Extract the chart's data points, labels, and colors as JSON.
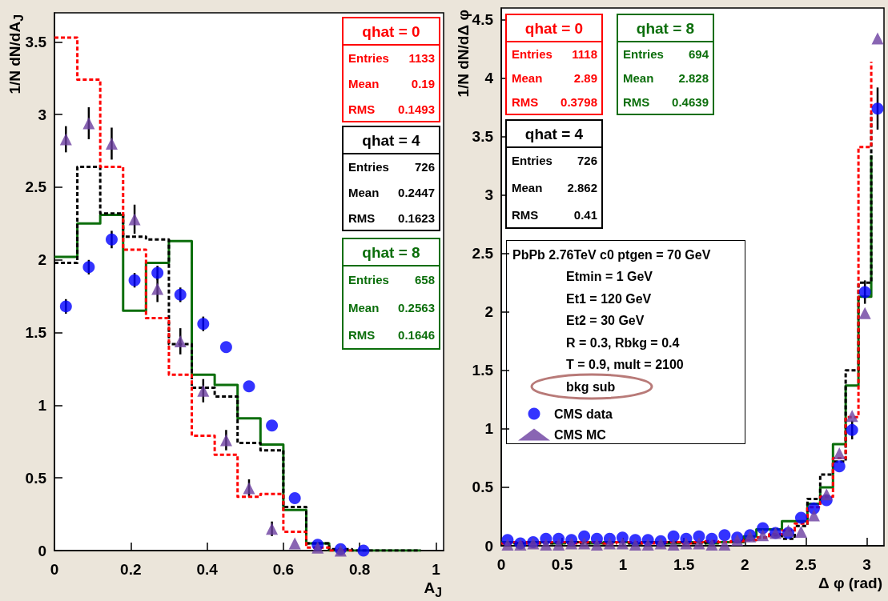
{
  "chart_data": [
    {
      "type": "step",
      "xlabel": "A$_{J}$",
      "ylabel": "1/N dN/dA$_{J}$",
      "xlim": [
        0,
        1.02
      ],
      "xticks": [
        0,
        0.2,
        0.4,
        0.6,
        0.8,
        1
      ],
      "ylim": [
        0,
        3.7
      ],
      "yticks": [
        0,
        0.5,
        1,
        1.5,
        2,
        2.5,
        3,
        3.5
      ],
      "grid": false,
      "series": [
        {
          "name": "qhat = 0",
          "color": "#ff0000",
          "line_style": "dashed",
          "x": [
            0,
            0.06,
            0.12,
            0.18,
            0.24,
            0.3,
            0.36,
            0.42,
            0.48,
            0.54,
            0.6,
            0.66,
            0.72,
            0.78
          ],
          "values": [
            3.53,
            3.24,
            2.64,
            2.07,
            1.6,
            1.21,
            0.79,
            0.66,
            0.37,
            0.39,
            0.13,
            0.02,
            0,
            0
          ]
        },
        {
          "name": "qhat = 4",
          "color": "#000000",
          "line_style": "dashed",
          "x": [
            0,
            0.06,
            0.12,
            0.18,
            0.24,
            0.3,
            0.36,
            0.42,
            0.48,
            0.54,
            0.6,
            0.66,
            0.72,
            0.78,
            0.84,
            0.9,
            0.96
          ],
          "values": [
            1.98,
            2.64,
            2.32,
            2.16,
            2.14,
            1.42,
            1.12,
            1.06,
            0.74,
            0.69,
            0.3,
            0.05,
            0.01,
            0,
            0,
            0,
            0
          ]
        },
        {
          "name": "qhat = 8",
          "color": "#0b6e0b",
          "line_style": "solid",
          "x": [
            0,
            0.06,
            0.12,
            0.18,
            0.24,
            0.3,
            0.36,
            0.42,
            0.48,
            0.54,
            0.6,
            0.66,
            0.72,
            0.78,
            0.84,
            0.9,
            0.96
          ],
          "values": [
            2.02,
            2.25,
            2.31,
            1.65,
            1.98,
            2.13,
            1.21,
            1.14,
            0.91,
            0.73,
            0.28,
            0.05,
            0,
            0,
            0,
            0,
            0
          ]
        },
        {
          "type": "scatter",
          "color": "#0000ff",
          "marker": "circle",
          "x": [
            0.03,
            0.09,
            0.15,
            0.21,
            0.27,
            0.33,
            0.39,
            0.45,
            0.51,
            0.57,
            0.63,
            0.69,
            0.75,
            0.81
          ],
          "values": [
            1.68,
            1.95,
            2.14,
            1.86,
            1.91,
            1.76,
            1.56,
            1.4,
            1.13,
            0.86,
            0.36,
            0.04,
            0.01,
            0
          ],
          "errors": [
            0.05,
            0.05,
            0.06,
            0.05,
            0.05,
            0.05,
            0.05,
            null,
            null,
            null,
            null,
            null,
            null,
            null
          ]
        },
        {
          "type": "scatter",
          "color": "#6b3fa0",
          "marker": "triangle",
          "x": [
            0.03,
            0.09,
            0.15,
            0.21,
            0.27,
            0.33,
            0.39,
            0.45,
            0.51,
            0.57,
            0.63,
            0.69,
            0.75
          ],
          "values": [
            2.83,
            2.94,
            2.8,
            2.28,
            1.8,
            1.44,
            1.1,
            0.76,
            0.43,
            0.15,
            0.05,
            0.02,
            0
          ],
          "errors": [
            0.09,
            0.11,
            0.11,
            0.1,
            0.09,
            0.09,
            0.08,
            0.07,
            0.06,
            0.05,
            null,
            null,
            null
          ]
        }
      ],
      "annotations": [
        "Entries 1133",
        "Mean 0.19",
        "RMS 0.1493",
        "Entries 726",
        "Mean 0.2447",
        "RMS 0.1623",
        "Entries 658",
        "Mean 0.2563",
        "RMS 0.1646"
      ]
    },
    {
      "type": "step",
      "xlabel": "Δ φ (rad)",
      "ylabel": "1/N dN/dΔ φ",
      "xlim": [
        0,
        3.1416
      ],
      "xticks": [
        0,
        0.5,
        1,
        1.5,
        2,
        2.5,
        3
      ],
      "ylim": [
        0,
        4.6
      ],
      "yticks": [
        0,
        0.5,
        1,
        1.5,
        2,
        2.5,
        3,
        3.5,
        4,
        4.5
      ],
      "grid": false,
      "legend": "left",
      "series": [
        {
          "name": "qhat = 0",
          "color": "#ff0000",
          "line_style": "dashed",
          "x": [
            0,
            0.105,
            0.209,
            0.314,
            0.419,
            0.524,
            0.628,
            0.733,
            0.838,
            0.942,
            1.047,
            1.152,
            1.257,
            1.361,
            1.466,
            1.571,
            1.676,
            1.78,
            1.885,
            1.99,
            2.094,
            2.199,
            2.304,
            2.409,
            2.513,
            2.618,
            2.723,
            2.827,
            2.932,
            3.037
          ],
          "values": [
            0.02,
            0.03,
            0.02,
            0.03,
            0.03,
            0.02,
            0.03,
            0.03,
            0.02,
            0.03,
            0.03,
            0.02,
            0.03,
            0.03,
            0.02,
            0.03,
            0.04,
            0.03,
            0.04,
            0.05,
            0.07,
            0.1,
            0.13,
            0.19,
            0.33,
            0.42,
            0.75,
            1.1,
            3.41,
            4.14
          ]
        },
        {
          "name": "qhat = 4",
          "color": "#000000",
          "line_style": "dashed",
          "x": [
            0,
            0.105,
            0.209,
            0.314,
            0.419,
            0.524,
            0.628,
            0.733,
            0.838,
            0.942,
            1.047,
            1.152,
            1.257,
            1.361,
            1.466,
            1.571,
            1.676,
            1.78,
            1.885,
            1.99,
            2.094,
            2.199,
            2.304,
            2.409,
            2.513,
            2.618,
            2.723,
            2.827,
            2.932,
            3.037
          ],
          "values": [
            0.02,
            0.02,
            0.03,
            0.02,
            0.03,
            0.03,
            0.02,
            0.03,
            0.02,
            0.03,
            0.02,
            0.03,
            0.02,
            0.03,
            0.03,
            0.02,
            0.03,
            0.03,
            0.04,
            0.05,
            0.07,
            0.09,
            0.06,
            0.17,
            0.4,
            0.61,
            0.72,
            1.5,
            2.25,
            3.7
          ]
        },
        {
          "name": "qhat = 8",
          "color": "#0b6e0b",
          "line_style": "solid",
          "x": [
            0,
            0.105,
            0.209,
            0.314,
            0.419,
            0.524,
            0.628,
            0.733,
            0.838,
            0.942,
            1.047,
            1.152,
            1.257,
            1.361,
            1.466,
            1.571,
            1.676,
            1.78,
            1.885,
            1.99,
            2.094,
            2.199,
            2.304,
            2.409,
            2.513,
            2.618,
            2.723,
            2.827,
            2.932,
            3.037
          ],
          "values": [
            0.03,
            0.02,
            0.03,
            0.03,
            0.02,
            0.03,
            0.03,
            0.02,
            0.03,
            0.03,
            0.02,
            0.03,
            0.03,
            0.02,
            0.03,
            0.03,
            0.02,
            0.03,
            0.03,
            0.08,
            0.14,
            0.14,
            0.21,
            0.21,
            0.36,
            0.5,
            0.87,
            1.37,
            2.13,
            3.34
          ]
        },
        {
          "type": "scatter",
          "name": "CMS data",
          "color": "#0000ff",
          "marker": "circle",
          "x": [
            0.052,
            0.157,
            0.262,
            0.367,
            0.471,
            0.576,
            0.681,
            0.785,
            0.89,
            0.995,
            1.1,
            1.204,
            1.309,
            1.414,
            1.518,
            1.623,
            1.728,
            1.833,
            1.937,
            2.042,
            2.147,
            2.251,
            2.356,
            2.461,
            2.566,
            2.67,
            2.775,
            2.88,
            2.985,
            3.089
          ],
          "values": [
            0.05,
            0.02,
            0.03,
            0.06,
            0.06,
            0.05,
            0.08,
            0.06,
            0.06,
            0.07,
            0.05,
            0.05,
            0.04,
            0.08,
            0.06,
            0.08,
            0.06,
            0.09,
            0.07,
            0.09,
            0.15,
            0.11,
            0.11,
            0.24,
            0.32,
            0.39,
            0.68,
            0.99,
            2.17,
            3.74
          ],
          "errors": [
            null,
            null,
            null,
            null,
            null,
            null,
            null,
            null,
            null,
            null,
            null,
            null,
            null,
            null,
            null,
            null,
            null,
            null,
            null,
            null,
            null,
            null,
            null,
            null,
            null,
            null,
            null,
            0.08,
            0.1,
            0.18
          ]
        },
        {
          "type": "scatter",
          "name": "CMS MC",
          "color": "#6b3fa0",
          "marker": "triangle",
          "x": [
            0.052,
            0.157,
            0.262,
            0.367,
            0.471,
            0.576,
            0.681,
            0.785,
            0.89,
            0.995,
            1.1,
            1.204,
            1.309,
            1.414,
            1.518,
            1.623,
            1.728,
            1.833,
            1.937,
            2.042,
            2.147,
            2.251,
            2.356,
            2.461,
            2.566,
            2.67,
            2.775,
            2.88,
            2.985,
            3.089
          ],
          "values": [
            0.01,
            0.01,
            0.02,
            0.01,
            0.01,
            0.02,
            0.02,
            0.01,
            0.02,
            0.02,
            0.01,
            0.01,
            0.02,
            0.01,
            0.02,
            0.02,
            0.01,
            0.01,
            0.05,
            0.08,
            0.09,
            0.11,
            0.13,
            0.12,
            0.26,
            0.44,
            0.79,
            1.11,
            1.99,
            4.34
          ]
        }
      ],
      "annotations": [
        "Entries 1118",
        "Mean 2.89",
        "RMS 0.3798",
        "Entries 726",
        "Mean 2.862",
        "RMS 0.41",
        "Entries 694",
        "Mean 2.828",
        "RMS 0.4639",
        "PbPb 2.76TeV c0 ptgen = 70 GeV",
        "Etmin = 1 GeV",
        "Et1 = 120 GeV",
        "Et2 = 30 GeV",
        "R = 0.3, Rbkg = 0.4",
        "T = 0.9, mult = 2100",
        "bkg sub"
      ]
    }
  ]
}
